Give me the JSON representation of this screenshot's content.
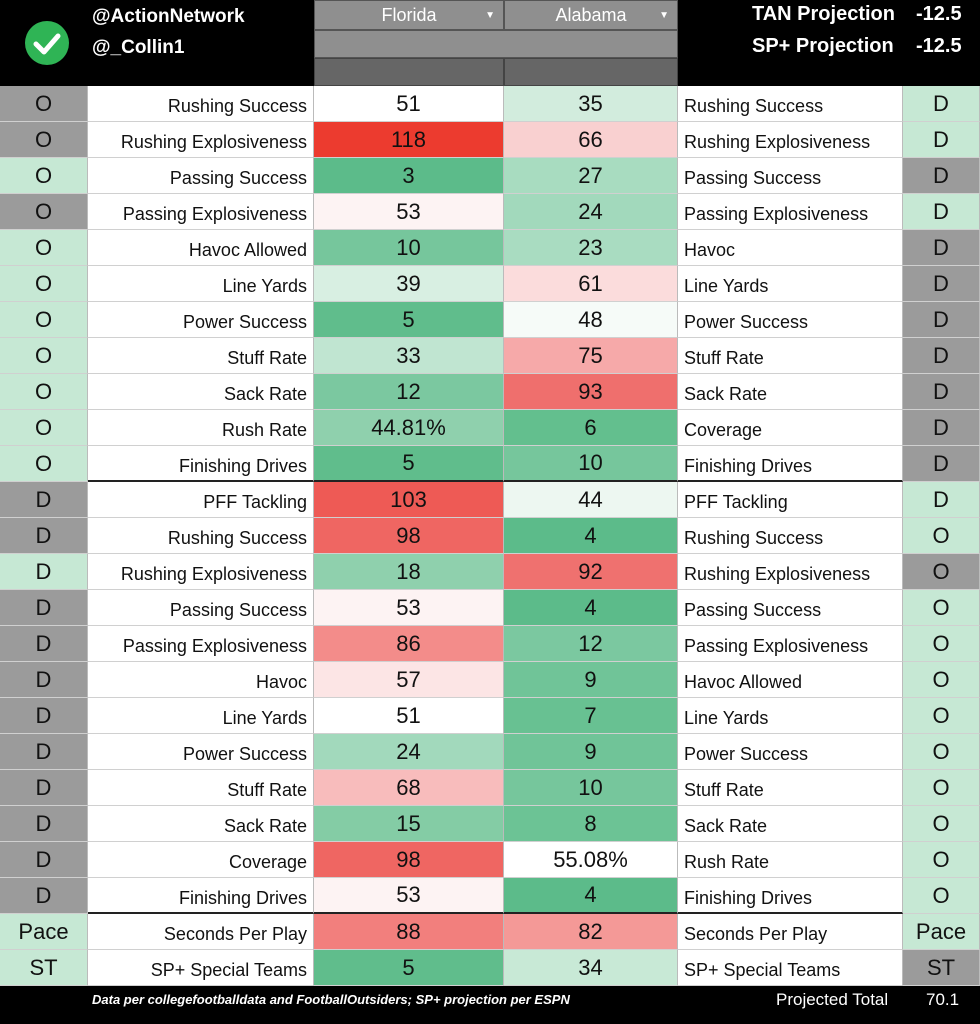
{
  "header": {
    "handles": [
      "@ActionNetwork",
      "@_Collin1"
    ],
    "teams": [
      "Florida",
      "Alabama"
    ],
    "projections": [
      {
        "label": "TAN Projection",
        "value": -12.5
      },
      {
        "label": "SP+ Projection",
        "value": -12.5
      }
    ]
  },
  "rows": [
    {
      "left_unit": "O",
      "left_label": "Rushing Success",
      "florida": 51,
      "alabama": 35,
      "right_label": "Rushing Success",
      "right_unit": "D",
      "colors": [
        "#9b9b9b",
        "#ffffff",
        "#d2ecdd",
        "#c6e8d4"
      ]
    },
    {
      "left_unit": "O",
      "left_label": "Rushing Explosiveness",
      "florida": 118,
      "alabama": 66,
      "right_label": "Rushing Explosiveness",
      "right_unit": "D",
      "colors": [
        "#9b9b9b",
        "#ec3b2f",
        "#f9d0d0",
        "#c6e8d4"
      ]
    },
    {
      "left_unit": "O",
      "left_label": "Passing Success",
      "florida": 3,
      "alabama": 27,
      "right_label": "Passing Success",
      "right_unit": "D",
      "colors": [
        "#c6e8d4",
        "#5cbb8a",
        "#a8dcc0",
        "#9b9b9b"
      ]
    },
    {
      "left_unit": "O",
      "left_label": "Passing Explosiveness",
      "florida": 53,
      "alabama": 24,
      "right_label": "Passing Explosiveness",
      "right_unit": "D",
      "colors": [
        "#9b9b9b",
        "#fdf3f3",
        "#a2d9bc",
        "#c6e8d4"
      ]
    },
    {
      "left_unit": "O",
      "left_label": "Havoc Allowed",
      "florida": 10,
      "alabama": 23,
      "right_label": "Havoc",
      "right_unit": "D",
      "colors": [
        "#c6e8d4",
        "#76c69c",
        "#a9dcc1",
        "#9b9b9b"
      ]
    },
    {
      "left_unit": "O",
      "left_label": "Line Yards",
      "florida": 39,
      "alabama": 61,
      "right_label": "Line Yards",
      "right_unit": "D",
      "colors": [
        "#c6e8d4",
        "#d8efe2",
        "#fbdcdc",
        "#9b9b9b"
      ]
    },
    {
      "left_unit": "O",
      "left_label": "Power Success",
      "florida": 5,
      "alabama": 48,
      "right_label": "Power Success",
      "right_unit": "D",
      "colors": [
        "#c6e8d4",
        "#60bd8c",
        "#f6fbf8",
        "#9b9b9b"
      ]
    },
    {
      "left_unit": "O",
      "left_label": "Stuff Rate",
      "florida": 33,
      "alabama": 75,
      "right_label": "Stuff Rate",
      "right_unit": "D",
      "colors": [
        "#c6e8d4",
        "#c0e5d1",
        "#f6a9a9",
        "#9b9b9b"
      ]
    },
    {
      "left_unit": "O",
      "left_label": "Sack Rate",
      "florida": 12,
      "alabama": 93,
      "right_label": "Sack Rate",
      "right_unit": "D",
      "colors": [
        "#c6e8d4",
        "#7bc8a0",
        "#ef6f6d",
        "#9b9b9b"
      ]
    },
    {
      "left_unit": "O",
      "left_label": "Rush Rate",
      "florida": "44.81%",
      "alabama": 6,
      "right_label": "Coverage",
      "right_unit": "D",
      "colors": [
        "#c6e8d4",
        "#8fd0ad",
        "#63bf8e",
        "#9b9b9b"
      ]
    },
    {
      "left_unit": "O",
      "left_label": "Finishing Drives",
      "florida": 5,
      "alabama": 10,
      "right_label": "Finishing Drives",
      "right_unit": "D",
      "colors": [
        "#c6e8d4",
        "#60bd8c",
        "#76c69c",
        "#9b9b9b"
      ]
    },
    {
      "left_unit": "D",
      "left_label": "PFF Tackling",
      "florida": 103,
      "alabama": 44,
      "right_label": "PFF Tackling",
      "right_unit": "D",
      "colors": [
        "#9b9b9b",
        "#ee5a55",
        "#edf7f1",
        "#c6e8d4"
      ]
    },
    {
      "left_unit": "D",
      "left_label": "Rushing Success",
      "florida": 98,
      "alabama": 4,
      "right_label": "Rushing Success",
      "right_unit": "O",
      "colors": [
        "#9b9b9b",
        "#ef6662",
        "#5cbb8a",
        "#c6e8d4"
      ]
    },
    {
      "left_unit": "D",
      "left_label": "Rushing Explosiveness",
      "florida": 18,
      "alabama": 92,
      "right_label": "Rushing Explosiveness",
      "right_unit": "O",
      "colors": [
        "#c6e8d4",
        "#8fd0ad",
        "#ef716f",
        "#9b9b9b"
      ]
    },
    {
      "left_unit": "D",
      "left_label": "Passing Success",
      "florida": 53,
      "alabama": 4,
      "right_label": "Passing Success",
      "right_unit": "O",
      "colors": [
        "#9b9b9b",
        "#fdf3f3",
        "#5cbb8a",
        "#c6e8d4"
      ]
    },
    {
      "left_unit": "D",
      "left_label": "Passing Explosiveness",
      "florida": 86,
      "alabama": 12,
      "right_label": "Passing Explosiveness",
      "right_unit": "O",
      "colors": [
        "#9b9b9b",
        "#f38c8a",
        "#7bc8a0",
        "#c6e8d4"
      ]
    },
    {
      "left_unit": "D",
      "left_label": "Havoc",
      "florida": 57,
      "alabama": 9,
      "right_label": "Havoc Allowed",
      "right_unit": "O",
      "colors": [
        "#9b9b9b",
        "#fce5e5",
        "#70c498",
        "#c6e8d4"
      ]
    },
    {
      "left_unit": "D",
      "left_label": "Line Yards",
      "florida": 51,
      "alabama": 7,
      "right_label": "Line Yards",
      "right_unit": "O",
      "colors": [
        "#9b9b9b",
        "#ffffff",
        "#68c192",
        "#c6e8d4"
      ]
    },
    {
      "left_unit": "D",
      "left_label": "Power Success",
      "florida": 24,
      "alabama": 9,
      "right_label": "Power Success",
      "right_unit": "O",
      "colors": [
        "#9b9b9b",
        "#a2d9bc",
        "#70c498",
        "#c6e8d4"
      ]
    },
    {
      "left_unit": "D",
      "left_label": "Stuff Rate",
      "florida": 68,
      "alabama": 10,
      "right_label": "Stuff Rate",
      "right_unit": "O",
      "colors": [
        "#9b9b9b",
        "#f8bcbc",
        "#76c69c",
        "#c6e8d4"
      ]
    },
    {
      "left_unit": "D",
      "left_label": "Sack Rate",
      "florida": 15,
      "alabama": 8,
      "right_label": "Sack Rate",
      "right_unit": "O",
      "colors": [
        "#9b9b9b",
        "#84cca5",
        "#6cc395",
        "#c6e8d4"
      ]
    },
    {
      "left_unit": "D",
      "left_label": "Coverage",
      "florida": 98,
      "alabama": "55.08%",
      "right_label": "Rush Rate",
      "right_unit": "O",
      "colors": [
        "#9b9b9b",
        "#ef6662",
        "#ffffff",
        "#c6e8d4"
      ]
    },
    {
      "left_unit": "D",
      "left_label": "Finishing Drives",
      "florida": 53,
      "alabama": 4,
      "right_label": "Finishing Drives",
      "right_unit": "O",
      "colors": [
        "#9b9b9b",
        "#fdf3f3",
        "#5cbb8a",
        "#c6e8d4"
      ]
    },
    {
      "left_unit": "Pace",
      "left_label": "Seconds Per Play",
      "florida": 88,
      "alabama": 82,
      "right_label": "Seconds Per Play",
      "right_unit": "Pace",
      "colors": [
        "#c6e8d4",
        "#f27f7d",
        "#f49997",
        "#c6e8d4"
      ]
    },
    {
      "left_unit": "ST",
      "left_label": "SP+ Special Teams",
      "florida": 5,
      "alabama": 34,
      "right_label": "SP+ Special Teams",
      "right_unit": "ST",
      "colors": [
        "#c6e8d4",
        "#60bd8c",
        "#c8e9d6",
        "#9b9b9b"
      ]
    }
  ],
  "footer": {
    "note": "Data per collegefootballdata and FootballOutsiders; SP+ projection per ESPN",
    "total_label": "Projected Total",
    "total": 70.1
  }
}
